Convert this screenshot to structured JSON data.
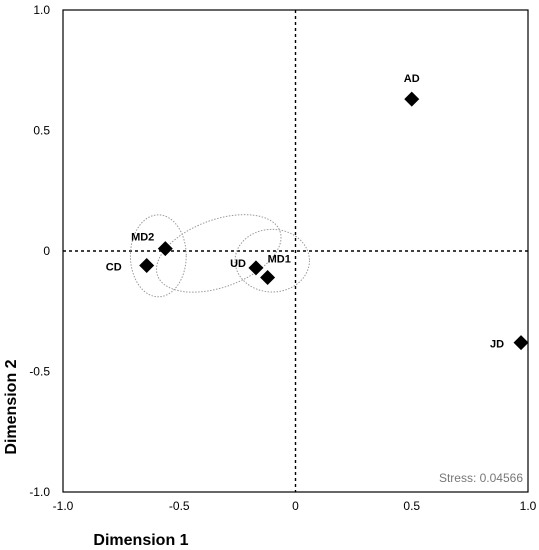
{
  "chart_data": {
    "type": "scatter",
    "title": "",
    "xlabel": "Dimension 1",
    "ylabel": "Dimension 2",
    "xlim": [
      -1.0,
      1.0
    ],
    "ylim": [
      -1.0,
      1.0
    ],
    "x_ticks": [
      "-1.0",
      "-0.5",
      "0",
      "0.5",
      "1.0"
    ],
    "y_ticks": [
      "1.0",
      "0.5",
      "0",
      "-0.5",
      "-1.0"
    ],
    "zero_lines": "dashed",
    "grid": false,
    "points": [
      {
        "label": "AD",
        "x": 0.5,
        "y": 0.63
      },
      {
        "label": "JD",
        "x": 0.97,
        "y": -0.38
      },
      {
        "label": "MD2",
        "x": -0.56,
        "y": 0.01
      },
      {
        "label": "CD",
        "x": -0.64,
        "y": -0.06
      },
      {
        "label": "UD",
        "x": -0.17,
        "y": -0.07
      },
      {
        "label": "MD1",
        "x": -0.12,
        "y": -0.11
      }
    ],
    "clusters": [
      {
        "center": [
          -0.59,
          -0.02
        ],
        "rx": 0.12,
        "ry": 0.17
      },
      {
        "center": [
          -0.1,
          -0.04
        ],
        "rx": 0.16,
        "ry": 0.13
      },
      {
        "center": [
          -0.33,
          -0.01
        ],
        "rx": 0.28,
        "ry": 0.14,
        "angle": -20
      }
    ],
    "annotation": "Stress: 0.04566",
    "marker": "diamond",
    "marker_color": "#000000"
  }
}
